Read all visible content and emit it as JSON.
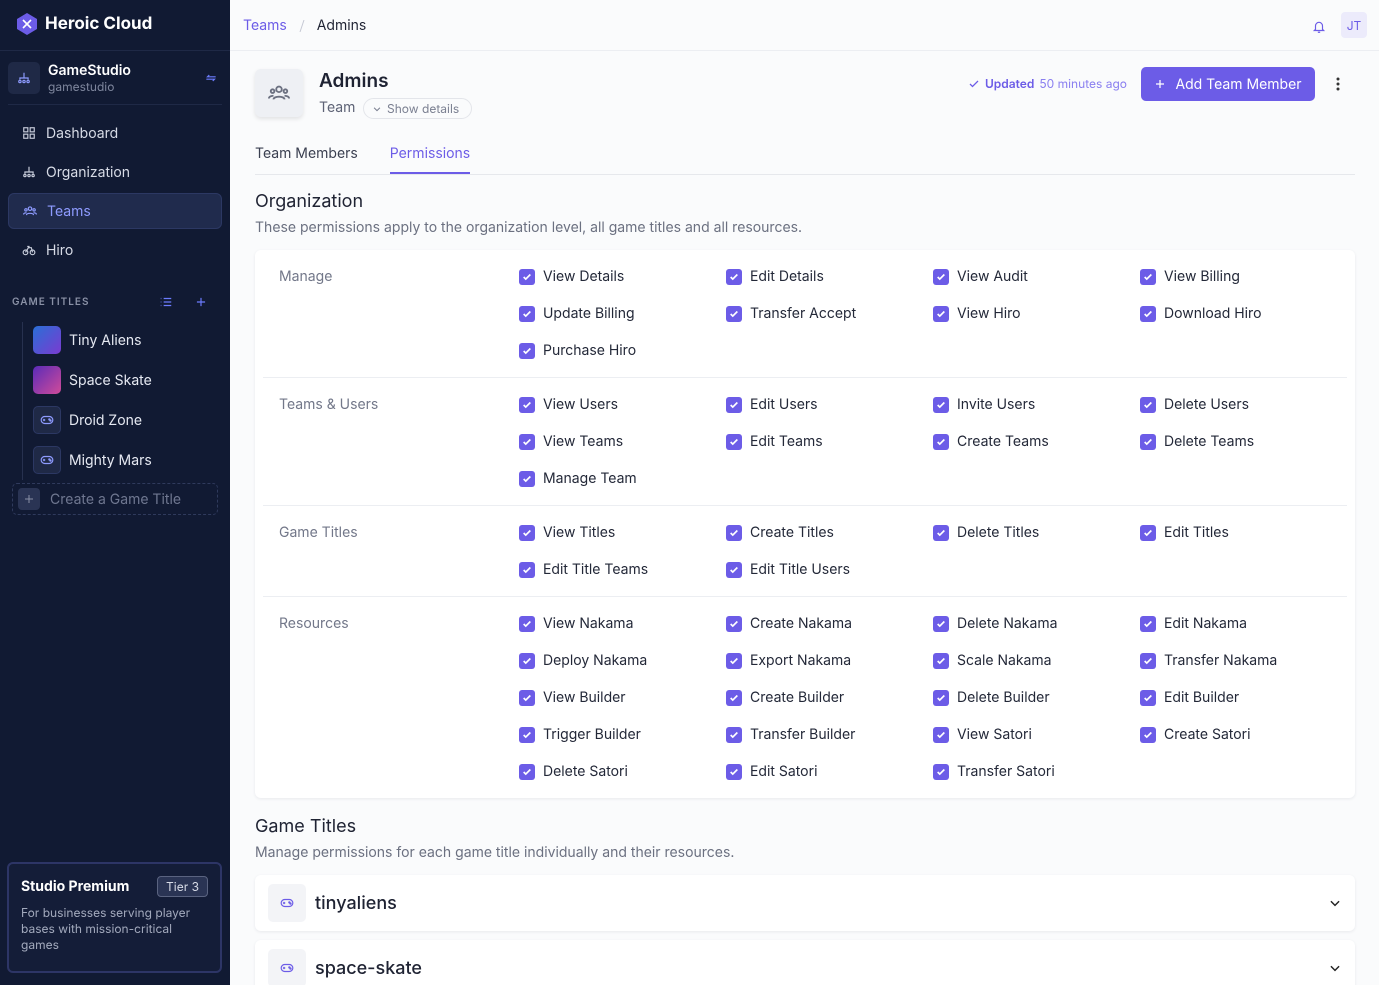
{
  "sidebar": {
    "brand": "Heroic Cloud",
    "organization": {
      "name": "GameStudio",
      "slug": "gamestudio"
    },
    "nav": [
      "Dashboard",
      "Organization",
      "Teams",
      "Hiro"
    ],
    "active_nav": 2,
    "game_titles_label": "GAME TITLES",
    "game_titles": [
      "Tiny Aliens",
      "Space Skate",
      "Droid Zone",
      "Mighty Mars"
    ],
    "create_title": "Create a Game Title",
    "plan": {
      "name": "Studio Premium",
      "tier": "Tier 3",
      "description": "For businesses serving player bases with mission-critical games"
    }
  },
  "header": {
    "breadcrumbs": [
      "Teams",
      "Admins"
    ],
    "avatar": "JT"
  },
  "team": {
    "name": "Admins",
    "type": "Team",
    "show_details": "Show details",
    "updated_label": "Updated",
    "updated_time": "50 minutes ago",
    "add_button": "Add Team Member"
  },
  "tabs": [
    "Team Members",
    "Permissions"
  ],
  "active_tab": 1,
  "organization_section": {
    "title": "Organization",
    "description": "These permissions apply to the organization level, all game titles and all resources.",
    "groups": [
      {
        "name": "Manage",
        "permissions": [
          "View Details",
          "Edit Details",
          "View Audit",
          "View Billing",
          "Update Billing",
          "Transfer Accept",
          "View Hiro",
          "Download Hiro",
          "Purchase Hiro"
        ]
      },
      {
        "name": "Teams & Users",
        "permissions": [
          "View Users",
          "Edit Users",
          "Invite Users",
          "Delete Users",
          "View Teams",
          "Edit Teams",
          "Create Teams",
          "Delete Teams",
          "Manage Team"
        ]
      },
      {
        "name": "Game Titles",
        "permissions": [
          "View Titles",
          "Create Titles",
          "Delete Titles",
          "Edit Titles",
          "Edit Title Teams",
          "Edit Title Users"
        ]
      },
      {
        "name": "Resources",
        "permissions": [
          "View Nakama",
          "Create Nakama",
          "Delete Nakama",
          "Edit Nakama",
          "Deploy Nakama",
          "Export Nakama",
          "Scale Nakama",
          "Transfer Nakama",
          "View Builder",
          "Create Builder",
          "Delete Builder",
          "Edit Builder",
          "Trigger Builder",
          "Transfer Builder",
          "View Satori",
          "Create Satori",
          "Delete Satori",
          "Edit Satori",
          "Transfer Satori"
        ]
      }
    ]
  },
  "game_titles_section": {
    "title": "Game Titles",
    "description": "Manage permissions for each game title individually and their resources.",
    "items": [
      "tinyaliens",
      "space-skate"
    ]
  }
}
